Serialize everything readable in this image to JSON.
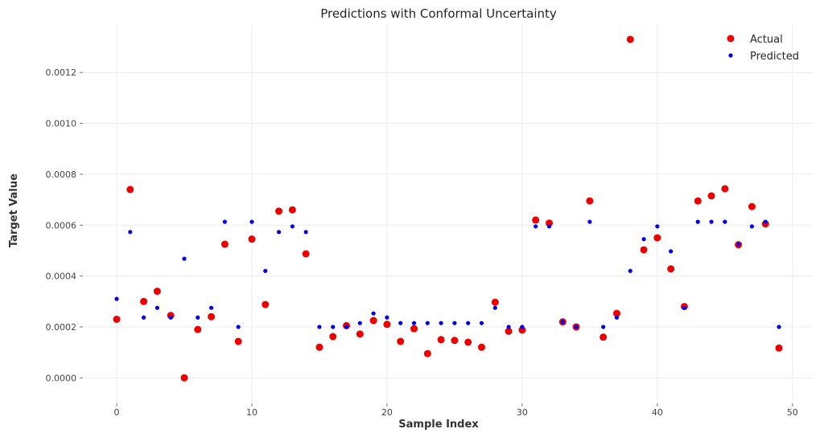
{
  "chart_data": {
    "type": "scatter",
    "title": "Predictions with Conformal Uncertainty",
    "xlabel": "Sample Index",
    "ylabel": "Target Value",
    "xlim": [
      -2.5,
      51.5
    ],
    "ylim": [
      -0.0001,
      0.00139
    ],
    "xticks": [
      0,
      10,
      20,
      30,
      40,
      50
    ],
    "yticks": [
      0.0,
      0.0002,
      0.0004,
      0.0006,
      0.0008,
      0.001,
      0.0012
    ],
    "xtick_labels": [
      "0",
      "10",
      "20",
      "30",
      "40",
      "50"
    ],
    "ytick_labels": [
      "0.0000",
      "0.0002",
      "0.0004",
      "0.0006",
      "0.0008",
      "0.0010",
      "0.0012"
    ],
    "grid": true,
    "legend_position": "top-right",
    "x": [
      0,
      1,
      2,
      3,
      4,
      5,
      6,
      7,
      8,
      9,
      10,
      11,
      12,
      13,
      14,
      15,
      16,
      17,
      18,
      19,
      20,
      21,
      22,
      23,
      24,
      25,
      26,
      27,
      28,
      29,
      30,
      31,
      32,
      33,
      34,
      35,
      36,
      37,
      38,
      39,
      40,
      41,
      42,
      43,
      44,
      45,
      46,
      47,
      48,
      49
    ],
    "series": [
      {
        "name": "Actual",
        "color": "#ee0000",
        "marker_size": "large",
        "values": [
          0.00023,
          0.00074,
          0.0003,
          0.00034,
          0.000245,
          0.0,
          0.00019,
          0.00024,
          0.000525,
          0.000143,
          0.000545,
          0.000288,
          0.000655,
          0.00066,
          0.000487,
          0.00012,
          0.000162,
          0.000205,
          0.000172,
          0.000225,
          0.00021,
          0.000143,
          0.000193,
          9.5e-05,
          0.00015,
          0.000147,
          0.00014,
          0.00012,
          0.000297,
          0.000183,
          0.000188,
          0.00062,
          0.000608,
          0.00022,
          0.0002,
          0.000695,
          0.00016,
          0.000253,
          0.00133,
          0.000503,
          0.00055,
          0.000428,
          0.00028,
          0.000695,
          0.000715,
          0.000743,
          0.000523,
          0.000673,
          0.000605,
          0.000117
        ]
      },
      {
        "name": "Predicted",
        "color": "#0000ee",
        "marker_size": "small",
        "values": [
          0.00031,
          0.000573,
          0.000237,
          0.000275,
          0.000237,
          0.000468,
          0.000237,
          0.000275,
          0.000613,
          0.0002,
          0.000613,
          0.00042,
          0.000573,
          0.000595,
          0.000573,
          0.0002,
          0.0002,
          0.0002,
          0.000215,
          0.000253,
          0.000237,
          0.000215,
          0.000215,
          0.000215,
          0.000215,
          0.000215,
          0.000215,
          0.000215,
          0.000275,
          0.0002,
          0.0002,
          0.000595,
          0.000595,
          0.00022,
          0.0002,
          0.000613,
          0.0002,
          0.000237,
          0.00042,
          0.000545,
          0.000595,
          0.000497,
          0.000275,
          0.000613,
          0.000613,
          0.000613,
          0.000525,
          0.000595,
          0.000613,
          0.0002
        ]
      }
    ]
  }
}
